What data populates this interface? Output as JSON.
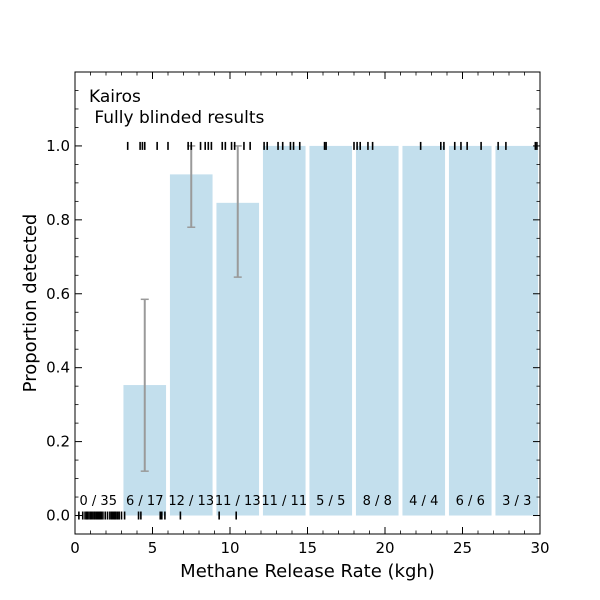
{
  "chart_data": {
    "type": "bar",
    "title_line1": "Kairos",
    "title_line2": " Fully blinded results",
    "xlabel": "Methane Release Rate (kgh)",
    "ylabel": "Proportion detected",
    "xlim": [
      0,
      30
    ],
    "ylim": [
      -0.05,
      1.2
    ],
    "x_ticks": [
      0,
      5,
      10,
      15,
      20,
      25,
      30
    ],
    "x_tick_labels": [
      "0",
      "5",
      "10",
      "15",
      "20",
      "25",
      "30"
    ],
    "y_ticks": [
      0.0,
      0.2,
      0.4,
      0.6,
      0.8,
      1.0
    ],
    "y_tick_labels": [
      "0.0",
      "0.2",
      "0.4",
      "0.6",
      "0.8",
      "1.0"
    ],
    "bar_color": "#c3dfed",
    "error_color": "#9a9a9a",
    "bins": [
      {
        "start": 0,
        "end": 3,
        "value": 0.0,
        "label": "0 / 35",
        "err_low": null,
        "err_high": null
      },
      {
        "start": 3,
        "end": 6,
        "value": 0.353,
        "label": "6 / 17",
        "err_low": 0.12,
        "err_high": 0.585
      },
      {
        "start": 6,
        "end": 9,
        "value": 0.923,
        "label": "12 / 13",
        "err_low": 0.78,
        "err_high": 1.0
      },
      {
        "start": 9,
        "end": 12,
        "value": 0.846,
        "label": "11 / 13",
        "err_low": 0.645,
        "err_high": 1.0
      },
      {
        "start": 12,
        "end": 15,
        "value": 1.0,
        "label": "11 / 11",
        "err_low": null,
        "err_high": null
      },
      {
        "start": 15,
        "end": 18,
        "value": 1.0,
        "label": "5 / 5",
        "err_low": null,
        "err_high": null
      },
      {
        "start": 18,
        "end": 21,
        "value": 1.0,
        "label": "8 / 8",
        "err_low": null,
        "err_high": null
      },
      {
        "start": 21,
        "end": 24,
        "value": 1.0,
        "label": "4 / 4",
        "err_low": null,
        "err_high": null
      },
      {
        "start": 24,
        "end": 27,
        "value": 1.0,
        "label": "6 / 6",
        "err_low": null,
        "err_high": null
      },
      {
        "start": 27,
        "end": 30,
        "value": 1.0,
        "label": "3 / 3",
        "err_low": null,
        "err_high": null
      }
    ],
    "rug_detected": [
      3.4,
      4.2,
      4.35,
      4.5,
      5.3,
      6.0,
      7.3,
      7.5,
      8.1,
      8.4,
      8.6,
      8.8,
      9.5,
      9.7,
      10.1,
      10.3,
      10.9,
      11.3,
      12.2,
      12.4,
      13.1,
      13.4,
      13.9,
      14.1,
      14.5,
      16.1,
      16.2,
      18.0,
      18.2,
      18.4,
      18.9,
      19.2,
      22.3,
      23.6,
      23.8,
      24.5,
      24.9,
      25.3,
      26.2,
      27.3,
      27.8,
      29.7,
      29.8
    ],
    "rug_not_detected": [
      0.25,
      0.5,
      0.65,
      0.75,
      0.8,
      0.9,
      1.0,
      1.05,
      1.15,
      1.25,
      1.3,
      1.4,
      1.5,
      1.6,
      1.65,
      1.7,
      1.8,
      1.95,
      2.1,
      2.25,
      2.35,
      2.4,
      2.5,
      2.55,
      2.6,
      2.65,
      2.75,
      2.85,
      3.0,
      3.2,
      4.1,
      4.25,
      5.5,
      5.6,
      5.8,
      6.8,
      9.3,
      10.4
    ]
  }
}
